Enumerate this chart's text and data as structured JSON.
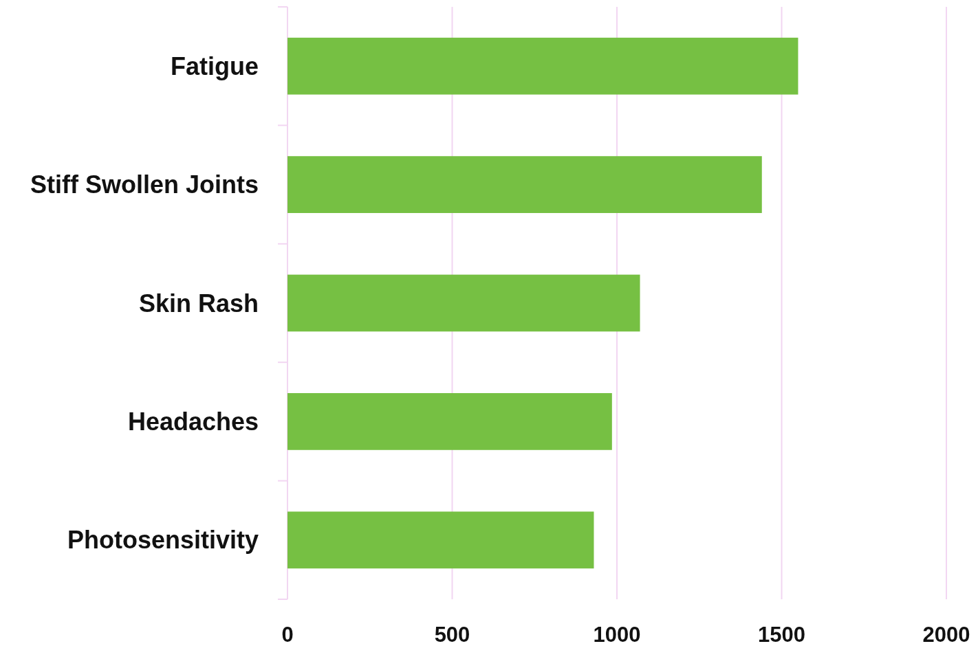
{
  "chart_data": {
    "type": "bar",
    "orientation": "horizontal",
    "categories": [
      "Fatigue",
      "Stiff Swollen Joints",
      "Skin Rash",
      "Headaches",
      "Photosensitivity"
    ],
    "values": [
      1550,
      1440,
      1070,
      985,
      930
    ],
    "color": "#76c043",
    "xlim": [
      0,
      2000
    ],
    "xticks": [
      0,
      500,
      1000,
      1500,
      2000
    ],
    "grid": "x"
  }
}
